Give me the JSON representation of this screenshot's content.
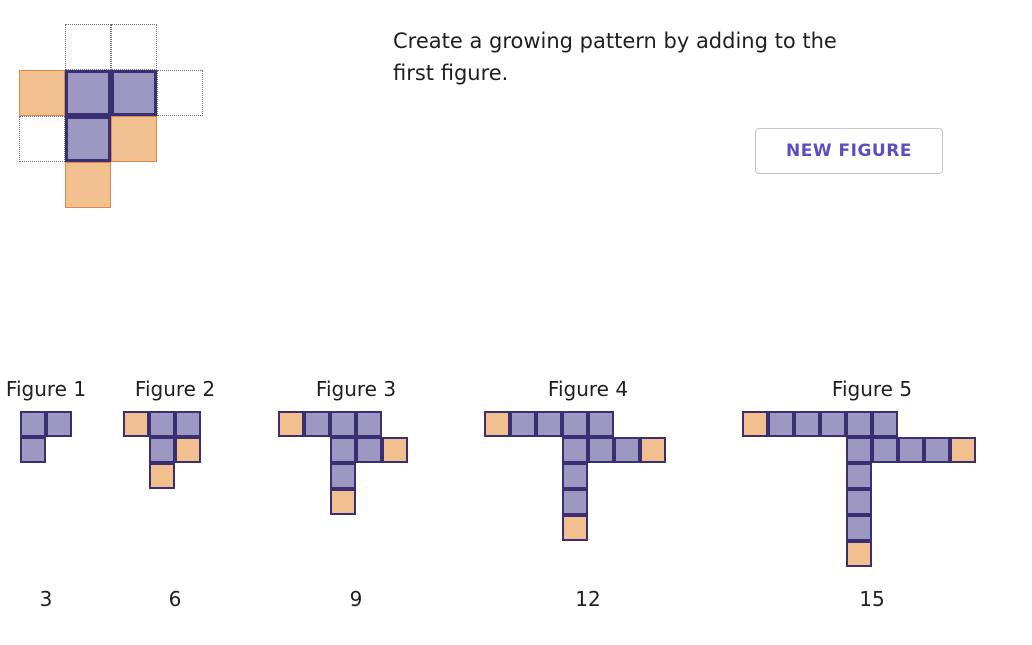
{
  "instructions": "Create a growing pattern by adding to the first figure.",
  "new_figure_button": "NEW FIGURE",
  "colors": {
    "base_fill": "#9d98c2",
    "base_border": "#3a2f72",
    "added_fill": "#f2bf8f",
    "added_border": "#d9894f",
    "button_text": "#5b4ec2"
  },
  "editor_grid": {
    "cells": [
      {
        "col": 1,
        "row": 0,
        "state": "empty"
      },
      {
        "col": 2,
        "row": 0,
        "state": "empty"
      },
      {
        "col": 0,
        "row": 1,
        "state": "added"
      },
      {
        "col": 1,
        "row": 1,
        "state": "base"
      },
      {
        "col": 2,
        "row": 1,
        "state": "base"
      },
      {
        "col": 3,
        "row": 1,
        "state": "empty"
      },
      {
        "col": 0,
        "row": 2,
        "state": "empty"
      },
      {
        "col": 1,
        "row": 2,
        "state": "base"
      },
      {
        "col": 2,
        "row": 2,
        "state": "added"
      },
      {
        "col": 1,
        "row": 3,
        "state": "added"
      }
    ]
  },
  "figures": [
    {
      "title": "Figure 1",
      "count": "3",
      "cells": [
        {
          "col": 0,
          "row": 0,
          "state": "base"
        },
        {
          "col": 1,
          "row": 0,
          "state": "base"
        },
        {
          "col": 0,
          "row": 1,
          "state": "base"
        }
      ]
    },
    {
      "title": "Figure 2",
      "count": "6",
      "cells": [
        {
          "col": 0,
          "row": 0,
          "state": "added"
        },
        {
          "col": 1,
          "row": 0,
          "state": "base"
        },
        {
          "col": 2,
          "row": 0,
          "state": "base"
        },
        {
          "col": 1,
          "row": 1,
          "state": "base"
        },
        {
          "col": 2,
          "row": 1,
          "state": "added"
        },
        {
          "col": 1,
          "row": 2,
          "state": "added"
        }
      ]
    },
    {
      "title": "Figure 3",
      "count": "9",
      "cells": [
        {
          "col": 0,
          "row": 0,
          "state": "added"
        },
        {
          "col": 1,
          "row": 0,
          "state": "base"
        },
        {
          "col": 2,
          "row": 0,
          "state": "base"
        },
        {
          "col": 3,
          "row": 0,
          "state": "base"
        },
        {
          "col": 2,
          "row": 1,
          "state": "base"
        },
        {
          "col": 3,
          "row": 1,
          "state": "base"
        },
        {
          "col": 4,
          "row": 1,
          "state": "added"
        },
        {
          "col": 2,
          "row": 2,
          "state": "base"
        },
        {
          "col": 2,
          "row": 3,
          "state": "added"
        }
      ]
    },
    {
      "title": "Figure 4",
      "count": "12",
      "cells": [
        {
          "col": 0,
          "row": 0,
          "state": "added"
        },
        {
          "col": 1,
          "row": 0,
          "state": "base"
        },
        {
          "col": 2,
          "row": 0,
          "state": "base"
        },
        {
          "col": 3,
          "row": 0,
          "state": "base"
        },
        {
          "col": 4,
          "row": 0,
          "state": "base"
        },
        {
          "col": 3,
          "row": 1,
          "state": "base"
        },
        {
          "col": 4,
          "row": 1,
          "state": "base"
        },
        {
          "col": 5,
          "row": 1,
          "state": "base"
        },
        {
          "col": 6,
          "row": 1,
          "state": "added"
        },
        {
          "col": 3,
          "row": 2,
          "state": "base"
        },
        {
          "col": 3,
          "row": 3,
          "state": "base"
        },
        {
          "col": 3,
          "row": 4,
          "state": "added"
        }
      ]
    },
    {
      "title": "Figure 5",
      "count": "15",
      "cells": [
        {
          "col": 0,
          "row": 0,
          "state": "added"
        },
        {
          "col": 1,
          "row": 0,
          "state": "base"
        },
        {
          "col": 2,
          "row": 0,
          "state": "base"
        },
        {
          "col": 3,
          "row": 0,
          "state": "base"
        },
        {
          "col": 4,
          "row": 0,
          "state": "base"
        },
        {
          "col": 5,
          "row": 0,
          "state": "base"
        },
        {
          "col": 4,
          "row": 1,
          "state": "base"
        },
        {
          "col": 5,
          "row": 1,
          "state": "base"
        },
        {
          "col": 6,
          "row": 1,
          "state": "base"
        },
        {
          "col": 7,
          "row": 1,
          "state": "base"
        },
        {
          "col": 8,
          "row": 1,
          "state": "added"
        },
        {
          "col": 4,
          "row": 2,
          "state": "base"
        },
        {
          "col": 4,
          "row": 3,
          "state": "base"
        },
        {
          "col": 4,
          "row": 4,
          "state": "base"
        },
        {
          "col": 4,
          "row": 5,
          "state": "added"
        }
      ]
    }
  ]
}
